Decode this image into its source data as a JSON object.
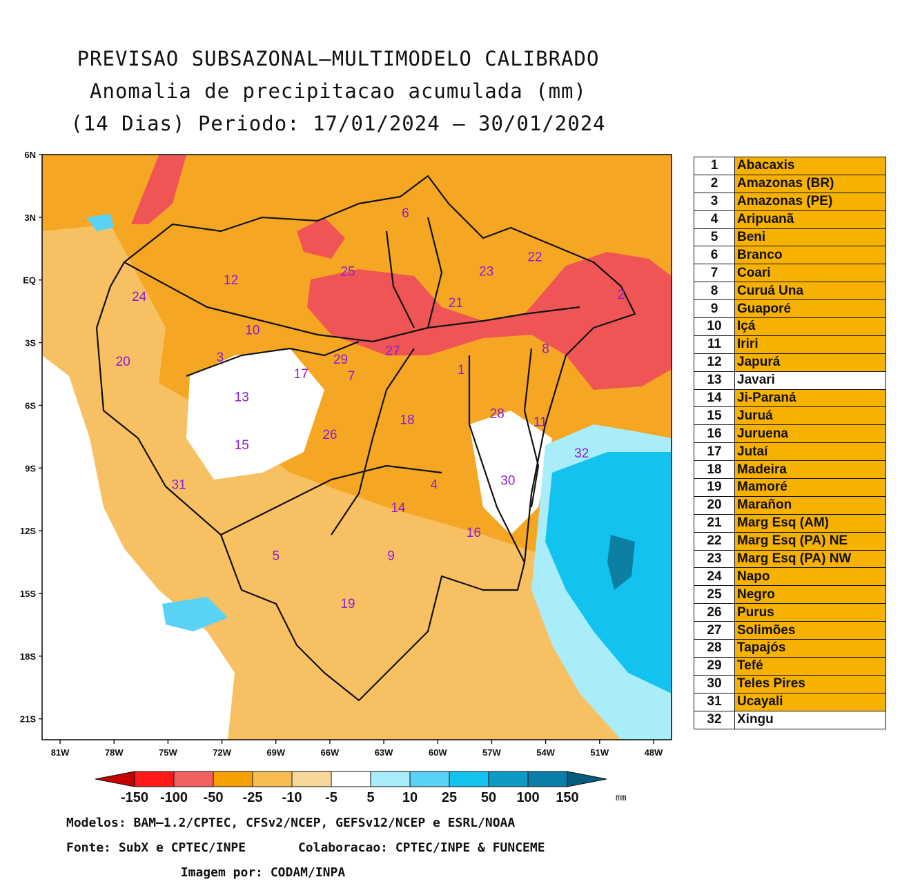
{
  "title": {
    "line1": "PREVISAO SUBSAZONAL—MULTIMODELO CALIBRADO",
    "line2": "Anomalia de precipitacao acumulada (mm)",
    "line3": "(14 Dias) Periodo: 17/01/2024 — 30/01/2024"
  },
  "axes": {
    "lat_labels": [
      "6N",
      "3N",
      "EQ",
      "3S",
      "6S",
      "9S",
      "12S",
      "15S",
      "18S",
      "21S"
    ],
    "lat_values": [
      6,
      3,
      0,
      -3,
      -6,
      -9,
      -12,
      -15,
      -18,
      -21
    ],
    "lon_labels": [
      "81W",
      "78W",
      "75W",
      "72W",
      "69W",
      "66W",
      "63W",
      "60W",
      "57W",
      "54W",
      "51W",
      "48W"
    ],
    "lon_values": [
      -81,
      -78,
      -75,
      -72,
      -69,
      -66,
      -63,
      -60,
      -57,
      -54,
      -51,
      -48
    ],
    "lat_range": [
      -22,
      6
    ],
    "lon_range": [
      -82,
      -47
    ]
  },
  "colorbar": {
    "tick_labels": [
      "-150",
      "-100",
      "-50",
      "-25",
      "-10",
      "-5",
      "5",
      "10",
      "25",
      "50",
      "100",
      "150"
    ],
    "unit": "mm",
    "colors": [
      "#c40000",
      "#ff1a1a",
      "#f26060",
      "#f5a000",
      "#f7bd50",
      "#f7d89a",
      "#ffffff",
      "#a9ecfa",
      "#5ad2f6",
      "#12c3f0",
      "#0c9bc4",
      "#0a7da8",
      "#055c7e"
    ]
  },
  "map_colors": {
    "strong_dry": "#f05555",
    "dry": "#f5a623",
    "light_dry": "#f7c063",
    "very_light_dry": "#f8d9a0",
    "neutral": "#ffffff",
    "light_wet": "#a9ecfa",
    "wet": "#12c3f0",
    "very_wet": "#0c7fa3"
  },
  "basin_labels": [
    {
      "id": "1",
      "lon": -58.7,
      "lat": -4.5
    },
    {
      "id": "2",
      "lon": -49.8,
      "lat": -0.9
    },
    {
      "id": "3",
      "lon": -72.1,
      "lat": -3.9
    },
    {
      "id": "4",
      "lon": -60.2,
      "lat": -10.0
    },
    {
      "id": "5",
      "lon": -69.0,
      "lat": -13.4
    },
    {
      "id": "6",
      "lon": -61.8,
      "lat": 3.0
    },
    {
      "id": "7",
      "lon": -64.8,
      "lat": -4.8
    },
    {
      "id": "8",
      "lon": -54.0,
      "lat": -3.5
    },
    {
      "id": "9",
      "lon": -62.6,
      "lat": -13.4
    },
    {
      "id": "10",
      "lon": -70.3,
      "lat": -2.6
    },
    {
      "id": "11",
      "lon": -54.3,
      "lat": -7.0
    },
    {
      "id": "12",
      "lon": -71.5,
      "lat": -0.2
    },
    {
      "id": "13",
      "lon": -70.9,
      "lat": -5.8
    },
    {
      "id": "14",
      "lon": -62.2,
      "lat": -11.1
    },
    {
      "id": "15",
      "lon": -70.9,
      "lat": -8.1
    },
    {
      "id": "16",
      "lon": -58.0,
      "lat": -12.3
    },
    {
      "id": "17",
      "lon": -67.6,
      "lat": -4.7
    },
    {
      "id": "18",
      "lon": -61.7,
      "lat": -6.9
    },
    {
      "id": "19",
      "lon": -65.0,
      "lat": -15.7
    },
    {
      "id": "20",
      "lon": -77.5,
      "lat": -4.1
    },
    {
      "id": "21",
      "lon": -59.0,
      "lat": -1.3
    },
    {
      "id": "22",
      "lon": -54.6,
      "lat": 0.9
    },
    {
      "id": "23",
      "lon": -57.3,
      "lat": 0.2
    },
    {
      "id": "24",
      "lon": -76.6,
      "lat": -1.0
    },
    {
      "id": "25",
      "lon": -65.0,
      "lat": 0.2
    },
    {
      "id": "26",
      "lon": -66.0,
      "lat": -7.6
    },
    {
      "id": "27",
      "lon": -62.5,
      "lat": -3.6
    },
    {
      "id": "28",
      "lon": -56.7,
      "lat": -6.6
    },
    {
      "id": "29",
      "lon": -65.4,
      "lat": -4.0
    },
    {
      "id": "30",
      "lon": -56.1,
      "lat": -9.8
    },
    {
      "id": "31",
      "lon": -74.4,
      "lat": -10.0
    },
    {
      "id": "32",
      "lon": -52.0,
      "lat": -8.5
    }
  ],
  "basins_table": [
    {
      "num": "1",
      "name": "Abacaxis",
      "color": "#f7b100"
    },
    {
      "num": "2",
      "name": "Amazonas (BR)",
      "color": "#f7b100"
    },
    {
      "num": "3",
      "name": "Amazonas (PE)",
      "color": "#f7b100"
    },
    {
      "num": "4",
      "name": "Aripuanã",
      "color": "#f7b100"
    },
    {
      "num": "5",
      "name": "Beni",
      "color": "#f7b100"
    },
    {
      "num": "6",
      "name": "Branco",
      "color": "#f7b100"
    },
    {
      "num": "7",
      "name": "Coari",
      "color": "#f7b100"
    },
    {
      "num": "8",
      "name": "Curuá Una",
      "color": "#f7b100"
    },
    {
      "num": "9",
      "name": "Guaporé",
      "color": "#f7b100"
    },
    {
      "num": "10",
      "name": "Içá",
      "color": "#f7b100"
    },
    {
      "num": "11",
      "name": "Iriri",
      "color": "#f7b100"
    },
    {
      "num": "12",
      "name": "Japurá",
      "color": "#f7b100"
    },
    {
      "num": "13",
      "name": "Javari",
      "color": "#ffffff"
    },
    {
      "num": "14",
      "name": "Ji-Paraná",
      "color": "#f7b100"
    },
    {
      "num": "15",
      "name": "Juruá",
      "color": "#f7b100"
    },
    {
      "num": "16",
      "name": "Juruena",
      "color": "#f7b100"
    },
    {
      "num": "17",
      "name": "Jutaí",
      "color": "#f7b100"
    },
    {
      "num": "18",
      "name": "Madeira",
      "color": "#f7b100"
    },
    {
      "num": "19",
      "name": "Mamoré",
      "color": "#f7b100"
    },
    {
      "num": "20",
      "name": "Marañon",
      "color": "#f7b100"
    },
    {
      "num": "21",
      "name": "Marg Esq (AM)",
      "color": "#f7b100"
    },
    {
      "num": "22",
      "name": "Marg Esq (PA) NE",
      "color": "#f7b100"
    },
    {
      "num": "23",
      "name": "Marg Esq (PA) NW",
      "color": "#f7b100"
    },
    {
      "num": "24",
      "name": "Napo",
      "color": "#f7b100"
    },
    {
      "num": "25",
      "name": "Negro",
      "color": "#f7b100"
    },
    {
      "num": "26",
      "name": "Purus",
      "color": "#f7b100"
    },
    {
      "num": "27",
      "name": "Solimões",
      "color": "#f7b100"
    },
    {
      "num": "28",
      "name": "Tapajós",
      "color": "#f7b100"
    },
    {
      "num": "29",
      "name": "Tefé",
      "color": "#f7b100"
    },
    {
      "num": "30",
      "name": "Teles Pires",
      "color": "#f7b100"
    },
    {
      "num": "31",
      "name": "Ucayali",
      "color": "#f7b100"
    },
    {
      "num": "32",
      "name": "Xingu",
      "color": "#ffffff"
    }
  ],
  "credits": {
    "models": "Modelos: BAM—1.2/CPTEC, CFSv2/NCEP, GEFSv12/NCEP e ESRL/NOAA",
    "source": "Fonte: SubX e CPTEC/INPE",
    "collab": "Colaboracao: CPTEC/INPE & FUNCEME",
    "image_by": "Imagem por: CODAM/INPA"
  }
}
